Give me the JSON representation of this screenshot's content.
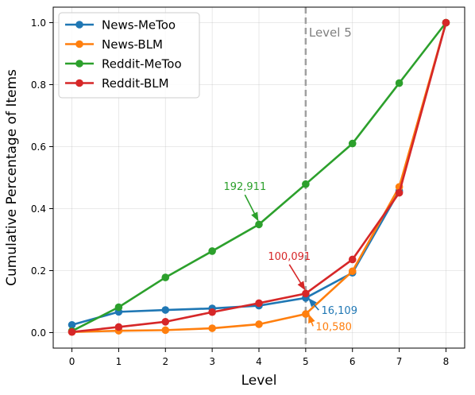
{
  "chart_data": {
    "type": "line",
    "title": "",
    "xlabel": "Level",
    "ylabel": "Cumulative Percentage of Items",
    "x": [
      0,
      1,
      2,
      3,
      4,
      5,
      6,
      7,
      8
    ],
    "xlim": [
      -0.4,
      8.4
    ],
    "ylim": [
      -0.05,
      1.05
    ],
    "xticks": [
      "0",
      "1",
      "2",
      "3",
      "4",
      "5",
      "6",
      "7",
      "8"
    ],
    "yticks": [
      "0.0",
      "0.2",
      "0.4",
      "0.6",
      "0.8",
      "1.0"
    ],
    "grid": true,
    "legend_position": "upper left",
    "series": [
      {
        "name": "News-MeToo",
        "color": "#1f77b4",
        "values": [
          0.025,
          0.067,
          0.073,
          0.078,
          0.087,
          0.112,
          0.193,
          0.457,
          1.0
        ]
      },
      {
        "name": "News-BLM",
        "color": "#ff7f0e",
        "values": [
          0.002,
          0.006,
          0.008,
          0.014,
          0.027,
          0.06,
          0.198,
          0.47,
          1.0
        ]
      },
      {
        "name": "Reddit-MeToo",
        "color": "#2ca02c",
        "values": [
          0.005,
          0.082,
          0.178,
          0.263,
          0.349,
          0.479,
          0.61,
          0.805,
          1.0
        ]
      },
      {
        "name": "Reddit-BLM",
        "color": "#d62728",
        "values": [
          0.002,
          0.018,
          0.035,
          0.066,
          0.095,
          0.126,
          0.236,
          0.451,
          1.0
        ]
      }
    ],
    "reference_line": {
      "x": 5,
      "label": "Level 5",
      "color": "#a0a0a0"
    },
    "annotations": [
      {
        "text": "192,911",
        "series": "Reddit-MeToo",
        "point_x": 4,
        "point_y": 0.349,
        "text_x": 3.7,
        "text_y": 0.46,
        "color": "#2ca02c"
      },
      {
        "text": "100,091",
        "series": "Reddit-BLM",
        "point_x": 5,
        "point_y": 0.126,
        "text_x": 4.65,
        "text_y": 0.235,
        "color": "#d62728"
      },
      {
        "text": "16,109",
        "series": "News-MeToo",
        "point_x": 5,
        "point_y": 0.112,
        "text_x": 5.72,
        "text_y": 0.06,
        "color": "#1f77b4"
      },
      {
        "text": "10,580",
        "series": "News-BLM",
        "point_x": 5,
        "point_y": 0.06,
        "text_x": 5.6,
        "text_y": 0.008,
        "color": "#ff7f0e"
      }
    ]
  }
}
